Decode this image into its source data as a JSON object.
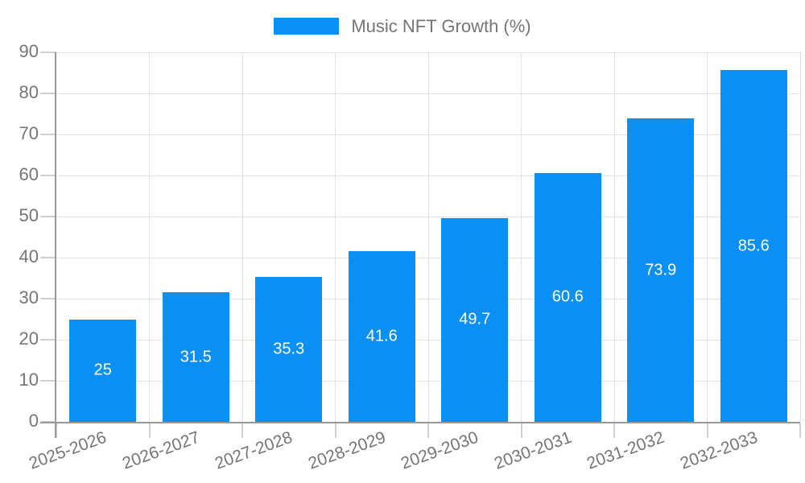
{
  "chart_data": {
    "type": "bar",
    "title": "Music NFT Growth (%)",
    "legend_entries": [
      "Music NFT Growth (%)"
    ],
    "legend_position": "top-center",
    "categories": [
      "2025-2026",
      "2026-2027",
      "2027-2028",
      "2028-2029",
      "2029-2030",
      "2030-2031",
      "2031-2032",
      "2032-2033"
    ],
    "values": [
      25,
      31.5,
      35.3,
      41.6,
      49.7,
      60.6,
      73.9,
      85.6
    ],
    "value_labels": [
      "25",
      "31.5",
      "35.3",
      "41.6",
      "49.7",
      "60.6",
      "73.9",
      "85.6"
    ],
    "xlabel": "",
    "ylabel": "",
    "ylim": [
      0,
      90
    ],
    "ytick_step": 10,
    "grid": "horizontal-and-vertical",
    "x_label_rotation_deg": -20,
    "colors": {
      "bar": "#0a90f5",
      "value_label": "#ffffff",
      "grid": "#e2e2e2",
      "tick": "#cfcfcf",
      "axis": "#999999",
      "text": "#757575",
      "background": "#ffffff"
    }
  }
}
